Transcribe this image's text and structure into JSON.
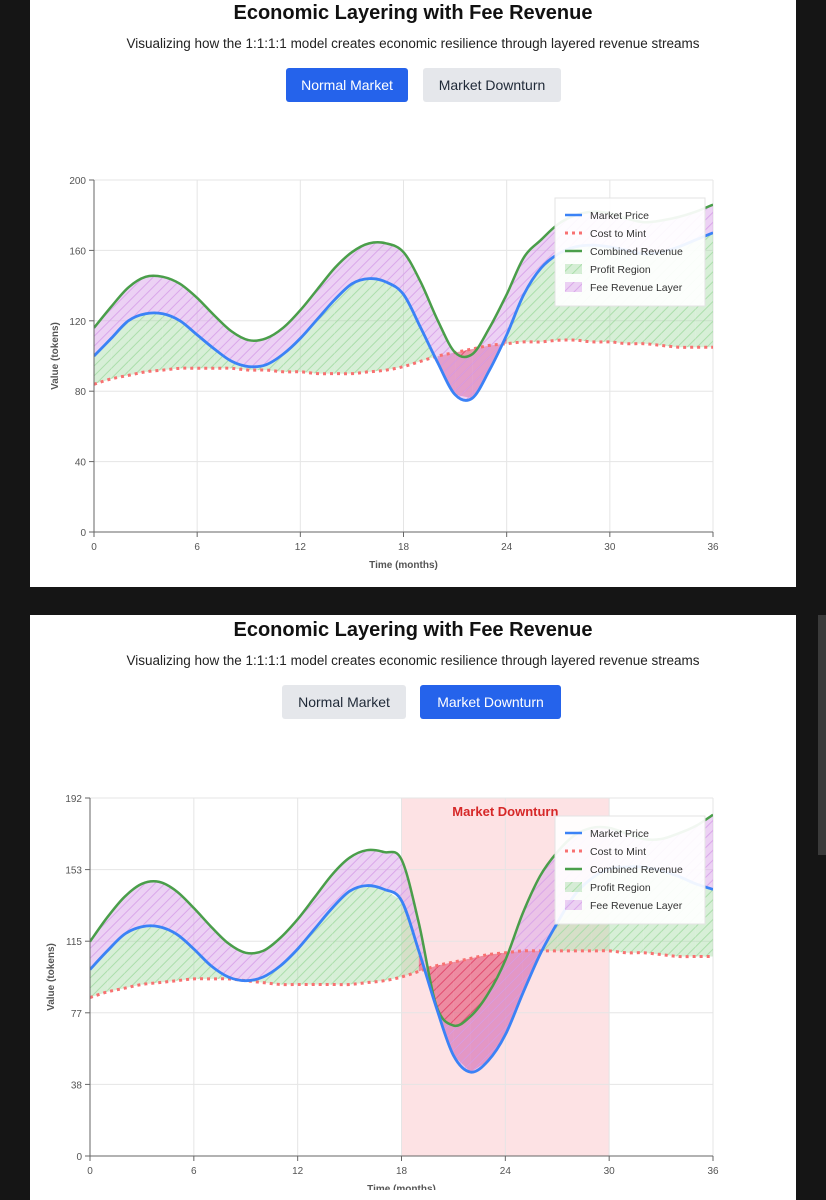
{
  "colors": {
    "market_price": "#3b82f6",
    "cost_to_mint": "#f87171",
    "combined_revenue": "#4a9e4a",
    "profit_region": "#a7dca7",
    "fee_layer": "#d9a3ea",
    "loss_region": "#e0446a",
    "downturn_band": "#fde2e4",
    "primary_button": "#2563eb"
  },
  "panels": [
    {
      "title": "Economic Layering with Fee Revenue",
      "subtitle": "Visualizing how the 1:1:1:1 model creates economic resilience through layered revenue streams",
      "buttons": [
        {
          "label": "Normal Market",
          "active": true
        },
        {
          "label": "Market Downturn",
          "active": false
        }
      ]
    },
    {
      "title": "Economic Layering with Fee Revenue",
      "subtitle": "Visualizing how the 1:1:1:1 model creates economic resilience through layered revenue streams",
      "buttons": [
        {
          "label": "Normal Market",
          "active": false
        },
        {
          "label": "Market Downturn",
          "active": true
        }
      ]
    }
  ],
  "chart_data": [
    {
      "type": "area",
      "scenario": "Normal Market",
      "title": "",
      "xlabel": "Time (months)",
      "ylabel": "Value (tokens)",
      "xlim": [
        0,
        36
      ],
      "ylim": [
        0,
        200
      ],
      "x_ticks": [
        0,
        6,
        12,
        18,
        24,
        30,
        36
      ],
      "y_ticks": [
        0,
        40,
        80,
        120,
        160,
        200
      ],
      "y_tick_labels": [
        "0",
        "40",
        "80",
        "120",
        "160",
        "200"
      ],
      "grid": true,
      "legend_position": "top-right",
      "legend": [
        "Market Price",
        "Cost to Mint",
        "Combined Revenue",
        "Profit Region",
        "Fee Revenue Layer"
      ],
      "annotation": "",
      "downturn_range": null,
      "x": [
        0,
        1,
        2,
        3,
        4,
        5,
        6,
        7,
        8,
        9,
        10,
        11,
        12,
        13,
        14,
        15,
        16,
        17,
        18,
        19,
        20,
        21,
        22,
        23,
        24,
        25,
        26,
        27,
        28,
        29,
        30,
        31,
        32,
        33,
        34,
        35,
        36
      ],
      "series": [
        {
          "name": "Market Price",
          "values": [
            100,
            110,
            120,
            124,
            124,
            120,
            112,
            104,
            97,
            94,
            95,
            101,
            110,
            121,
            132,
            141,
            144,
            142,
            135,
            116,
            96,
            78,
            76,
            92,
            112,
            135,
            150,
            158,
            162,
            163,
            162,
            160,
            158,
            159,
            162,
            166,
            170
          ]
        },
        {
          "name": "Cost to Mint",
          "values": [
            84,
            87,
            89,
            91,
            92,
            93,
            93,
            93,
            93,
            92,
            92,
            91,
            91,
            90,
            90,
            90,
            91,
            92,
            94,
            97,
            100,
            102,
            104,
            106,
            107,
            108,
            108,
            109,
            109,
            108,
            108,
            107,
            107,
            106,
            105,
            105,
            105
          ]
        },
        {
          "name": "Combined Revenue",
          "values": [
            116,
            128,
            139,
            145,
            145,
            141,
            133,
            123,
            114,
            109,
            110,
            116,
            126,
            138,
            150,
            159,
            164,
            164,
            159,
            142,
            120,
            102,
            101,
            116,
            135,
            156,
            166,
            175,
            180,
            182,
            181,
            178,
            176,
            177,
            179,
            182,
            186
          ]
        },
        {
          "name": "Fee Revenue Layer",
          "values": [
            16,
            18,
            19,
            21,
            21,
            21,
            21,
            19,
            17,
            15,
            15,
            15,
            16,
            17,
            18,
            18,
            20,
            22,
            24,
            26,
            24,
            24,
            25,
            24,
            23,
            21,
            16,
            17,
            18,
            19,
            19,
            18,
            18,
            18,
            17,
            16,
            16
          ]
        }
      ]
    },
    {
      "type": "area",
      "scenario": "Market Downturn",
      "title": "",
      "xlabel": "Time (months)",
      "ylabel": "Value (tokens)",
      "xlim": [
        0,
        36
      ],
      "ylim": [
        0,
        192
      ],
      "x_ticks": [
        0,
        6,
        12,
        18,
        24,
        30,
        36
      ],
      "y_ticks": [
        0,
        38.4,
        76.8,
        115.2,
        153.6,
        192
      ],
      "y_tick_labels": [
        "0",
        "38",
        "77",
        "115",
        "153",
        "192"
      ],
      "grid": true,
      "legend_position": "top-right",
      "legend": [
        "Market Price",
        "Cost to Mint",
        "Combined Revenue",
        "Profit Region",
        "Fee Revenue Layer"
      ],
      "annotation": "Market Downturn",
      "downturn_range": [
        18,
        30
      ],
      "x": [
        0,
        1,
        2,
        3,
        4,
        5,
        6,
        7,
        8,
        9,
        10,
        11,
        12,
        13,
        14,
        15,
        16,
        17,
        18,
        19,
        20,
        21,
        22,
        23,
        24,
        25,
        26,
        27,
        28,
        29,
        30,
        31,
        32,
        33,
        34,
        35,
        36
      ],
      "series": [
        {
          "name": "Market Price",
          "values": [
            100,
            110,
            119,
            123,
            123,
            119,
            111,
            102,
            96,
            94,
            96,
            102,
            111,
            122,
            133,
            142,
            145,
            143,
            137,
            110,
            80,
            54,
            45,
            51,
            65,
            87,
            108,
            125,
            140,
            149,
            154,
            155,
            155,
            153,
            150,
            146,
            143
          ]
        },
        {
          "name": "Cost to Mint",
          "values": [
            85,
            88,
            90,
            92,
            93,
            94,
            95,
            95,
            95,
            94,
            93,
            92,
            92,
            92,
            92,
            92,
            93,
            94,
            96,
            99,
            102,
            104,
            106,
            108,
            109,
            110,
            110,
            110,
            110,
            110,
            110,
            109,
            109,
            108,
            107,
            107,
            107
          ]
        },
        {
          "name": "Combined Revenue",
          "values": [
            115,
            128,
            139,
            146,
            147,
            142,
            133,
            123,
            114,
            109,
            110,
            117,
            127,
            139,
            151,
            160,
            164,
            163,
            159,
            125,
            81,
            70,
            75,
            87,
            105,
            130,
            150,
            163,
            172,
            176,
            176,
            173,
            170,
            170,
            173,
            177,
            183
          ]
        },
        {
          "name": "Fee Revenue Layer",
          "values": [
            15,
            18,
            20,
            23,
            24,
            23,
            22,
            21,
            18,
            15,
            14,
            15,
            16,
            17,
            18,
            18,
            19,
            20,
            22,
            15,
            1,
            16,
            30,
            36,
            40,
            43,
            42,
            38,
            32,
            27,
            22,
            18,
            15,
            17,
            23,
            31,
            40
          ]
        }
      ]
    }
  ]
}
